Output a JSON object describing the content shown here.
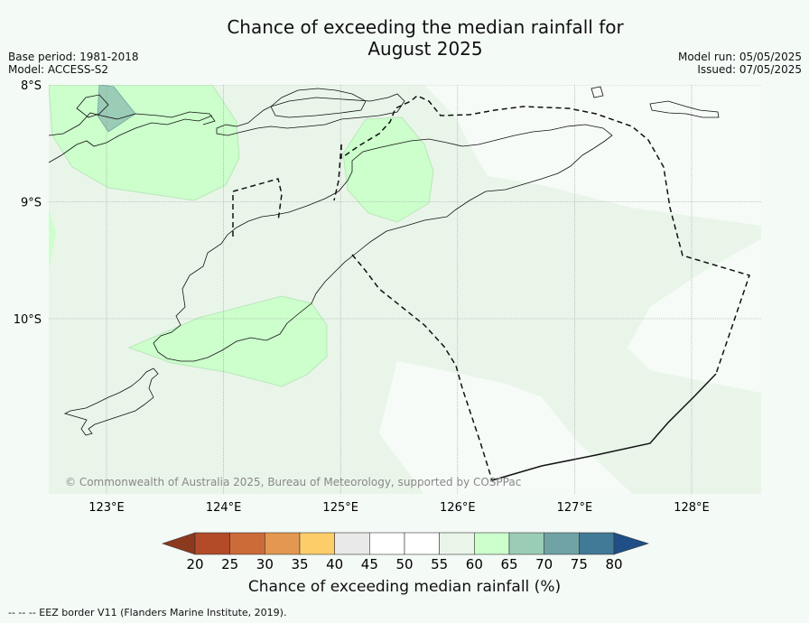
{
  "title": {
    "line1": "Chance of exceeding the median rainfall for",
    "line2": "August 2025"
  },
  "meta": {
    "base_period": "Base period: 1981-2018",
    "model": "Model: ACCESS-S2",
    "model_run": "Model run: 05/05/2025",
    "issued": "Issued: 07/05/2025"
  },
  "map": {
    "lon_range": [
      122.5,
      128.6
    ],
    "lat_range": [
      -8.0,
      -11.5
    ],
    "lon_ticks": [
      {
        "value": 123,
        "label": "123°E"
      },
      {
        "value": 124,
        "label": "124°E"
      },
      {
        "value": 125,
        "label": "125°E"
      },
      {
        "value": 126,
        "label": "126°E"
      },
      {
        "value": 127,
        "label": "127°E"
      },
      {
        "value": 128,
        "label": "128°E"
      }
    ],
    "lat_ticks": [
      {
        "value": -8,
        "label": "8°S"
      },
      {
        "value": -9,
        "label": "9°S"
      },
      {
        "value": -10,
        "label": "10°S"
      }
    ],
    "gridlines": true,
    "copyright": "© Commonwealth of Australia 2025, Bureau of Meteorology, supported by COSPPac"
  },
  "legend": {
    "title": "Chance of exceeding median rainfall (%)",
    "ticks": [
      "20",
      "25",
      "30",
      "35",
      "40",
      "45",
      "50",
      "55",
      "60",
      "65",
      "70",
      "75",
      "80"
    ],
    "colors": [
      "#8b3a1e",
      "#b34a28",
      "#cc6a38",
      "#e39750",
      "#fdcd6a",
      "#e9e9e9",
      "#ffffff",
      "#ffffff",
      "#eaf5ea",
      "#ccffcc",
      "#9bccb6",
      "#6fa3a6",
      "#407a96",
      "#1f4f86"
    ]
  },
  "footnote": "--  --  -- EEZ border V11 (Flanders Marine Institute, 2019)."
}
